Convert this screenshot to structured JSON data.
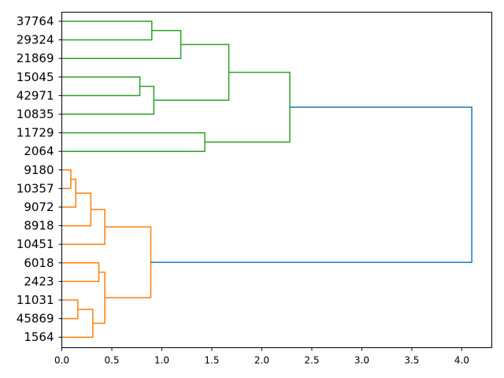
{
  "chart_data": {
    "type": "dendrogram",
    "orientation": "horizontal",
    "xlim": [
      0,
      4.3
    ],
    "x_ticks": [
      "0.0",
      "0.5",
      "1.0",
      "1.5",
      "2.0",
      "2.5",
      "3.0",
      "3.5",
      "4.0"
    ],
    "x_tick_values": [
      0,
      0.5,
      1.0,
      1.5,
      2.0,
      2.5,
      3.0,
      3.5,
      4.0
    ],
    "leaves": [
      "37764",
      "29324",
      "21869",
      "15045",
      "42971",
      "10835",
      "11729",
      "2064",
      "9180",
      "10357",
      "9072",
      "8918",
      "10451",
      "6018",
      "2423",
      "11031",
      "45869",
      "1564"
    ],
    "colors": {
      "cluster_1": "#2ca02c",
      "cluster_2": "#ff7f0e",
      "root": "#1f77b4",
      "axis": "#000000"
    },
    "merges": [
      {
        "id": "m1",
        "left": 0,
        "right": 1,
        "height": 0.9,
        "color": "cluster_1"
      },
      {
        "id": "m2",
        "left": "m1",
        "right": 2,
        "height": 1.19,
        "color": "cluster_1"
      },
      {
        "id": "m3",
        "left": 3,
        "right": 4,
        "height": 0.78,
        "color": "cluster_1"
      },
      {
        "id": "m4",
        "left": "m3",
        "right": 5,
        "height": 0.92,
        "color": "cluster_1"
      },
      {
        "id": "m5",
        "left": "m2",
        "right": "m4",
        "height": 1.67,
        "color": "cluster_1"
      },
      {
        "id": "m6",
        "left": 6,
        "right": 7,
        "height": 1.43,
        "color": "cluster_1"
      },
      {
        "id": "m7",
        "left": "m5",
        "right": "m6",
        "height": 2.28,
        "color": "cluster_1"
      },
      {
        "id": "m8",
        "left": 8,
        "right": 9,
        "height": 0.09,
        "color": "cluster_2"
      },
      {
        "id": "m9",
        "left": "m8",
        "right": 10,
        "height": 0.14,
        "color": "cluster_2"
      },
      {
        "id": "m10",
        "left": "m9",
        "right": 11,
        "height": 0.29,
        "color": "cluster_2"
      },
      {
        "id": "m11",
        "left": "m10",
        "right": 12,
        "height": 0.43,
        "color": "cluster_2"
      },
      {
        "id": "m12",
        "left": 13,
        "right": 14,
        "height": 0.37,
        "color": "cluster_2"
      },
      {
        "id": "m13",
        "left": 15,
        "right": 16,
        "height": 0.16,
        "color": "cluster_2"
      },
      {
        "id": "m14",
        "left": "m13",
        "right": 17,
        "height": 0.31,
        "color": "cluster_2"
      },
      {
        "id": "m15",
        "left": "m12",
        "right": "m14",
        "height": 0.43,
        "color": "cluster_2"
      },
      {
        "id": "m16",
        "left": "m11",
        "right": "m15",
        "height": 0.89,
        "color": "cluster_2"
      },
      {
        "id": "m17",
        "left": "m7",
        "right": "m16",
        "height": 4.1,
        "color": "root"
      }
    ]
  }
}
